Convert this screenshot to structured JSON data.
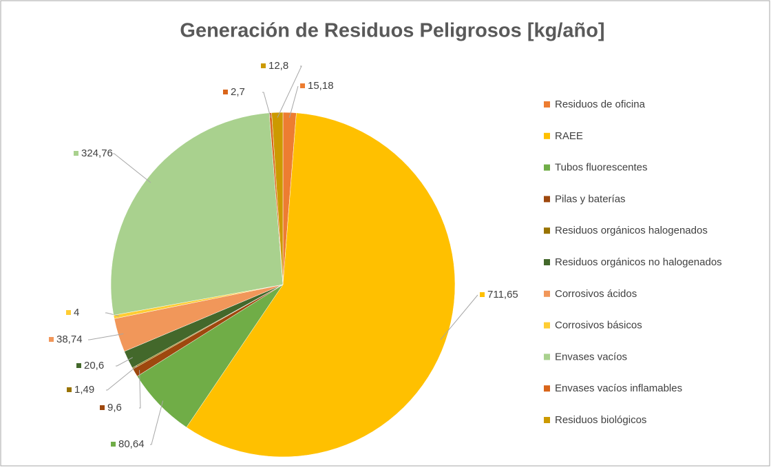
{
  "chart_data": {
    "type": "pie",
    "title": "Generación de Residuos Peligrosos [kg/año]",
    "categories": [
      "Residuos de oficina",
      "RAEE",
      "Tubos fluorescentes",
      "Pilas y baterías",
      "Residuos orgánicos halogenados",
      "Residuos orgánicos no halogenados",
      "Corrosivos ácidos",
      "Corrosivos básicos",
      "Envases vacíos",
      "Envases vacíos inflamables",
      "Residuos biológicos"
    ],
    "values": [
      15.18,
      711.65,
      80.64,
      9.6,
      1.49,
      20.6,
      38.74,
      4,
      324.76,
      2.7,
      12.8
    ],
    "value_labels": [
      "15,18",
      "711,65",
      "80,64",
      "9,6",
      "1,49",
      "20,6",
      "38,74",
      "4",
      "324,76",
      "2,7",
      "12,8"
    ],
    "colors": [
      "#ED7D31",
      "#FFC000",
      "#70AD47",
      "#9E480E",
      "#997300",
      "#43682B",
      "#F1975A",
      "#FFCD33",
      "#A9D18E",
      "#D9651A",
      "#CC9A00"
    ],
    "legend": "right"
  }
}
